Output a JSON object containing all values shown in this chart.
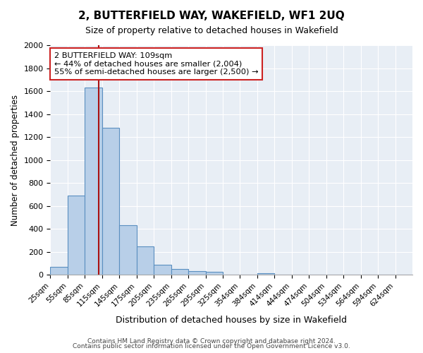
{
  "title": "2, BUTTERFIELD WAY, WAKEFIELD, WF1 2UQ",
  "subtitle": "Size of property relative to detached houses in Wakefield",
  "xlabel": "Distribution of detached houses by size in Wakefield",
  "ylabel": "Number of detached properties",
  "bar_color": "#b8cfe8",
  "bar_edge_color": "#5a8fc0",
  "background_color": "#e8eef5",
  "categories": [
    "25sqm",
    "55sqm",
    "85sqm",
    "115sqm",
    "145sqm",
    "175sqm",
    "205sqm",
    "235sqm",
    "265sqm",
    "295sqm",
    "325sqm",
    "354sqm",
    "384sqm",
    "414sqm",
    "444sqm",
    "474sqm",
    "504sqm",
    "534sqm",
    "564sqm",
    "594sqm",
    "624sqm"
  ],
  "values": [
    70,
    690,
    1630,
    1280,
    430,
    250,
    90,
    50,
    35,
    25,
    0,
    0,
    15,
    0,
    0,
    0,
    0,
    0,
    0,
    0,
    0
  ],
  "ylim": [
    0,
    2000
  ],
  "yticks": [
    0,
    200,
    400,
    600,
    800,
    1000,
    1200,
    1400,
    1600,
    1800,
    2000
  ],
  "property_line_x": 109,
  "annotation_box_text": "2 BUTTERFIELD WAY: 109sqm\n← 44% of detached houses are smaller (2,004)\n55% of semi-detached houses are larger (2,500) →",
  "footnote_line1": "Contains HM Land Registry data © Crown copyright and database right 2024.",
  "footnote_line2": "Contains public sector information licensed under the Open Government Licence v3.0.",
  "vline_color": "#aa1111",
  "annotation_box_edge_color": "#cc2222",
  "bin_edges": [
    25,
    55,
    85,
    115,
    145,
    175,
    205,
    235,
    265,
    295,
    325,
    354,
    384,
    414,
    444,
    474,
    504,
    534,
    564,
    594,
    624,
    654
  ]
}
